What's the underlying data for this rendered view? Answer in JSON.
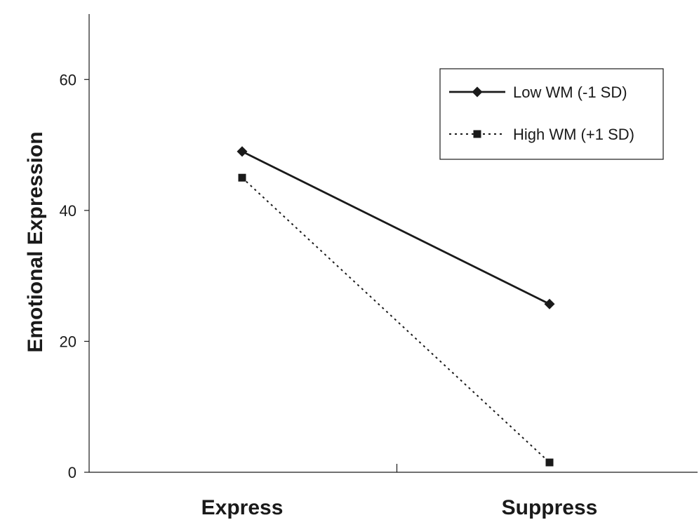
{
  "chart_data": {
    "type": "line",
    "categories": [
      "Express",
      "Suppress"
    ],
    "ylabel": "Emotional Expression",
    "xlabel": "",
    "ylim": [
      0,
      70
    ],
    "yticks": [
      0,
      20,
      40,
      60
    ],
    "grid": false,
    "legend_position": "top-right",
    "series": [
      {
        "name": "Low WM (-1 SD)",
        "values": [
          49,
          25.7
        ],
        "line_style": "solid",
        "marker": "diamond",
        "color": "#1a1a1a"
      },
      {
        "name": "High WM (+1 SD)",
        "values": [
          45,
          1.5
        ],
        "line_style": "dotted",
        "marker": "square",
        "color": "#1a1a1a"
      }
    ]
  }
}
